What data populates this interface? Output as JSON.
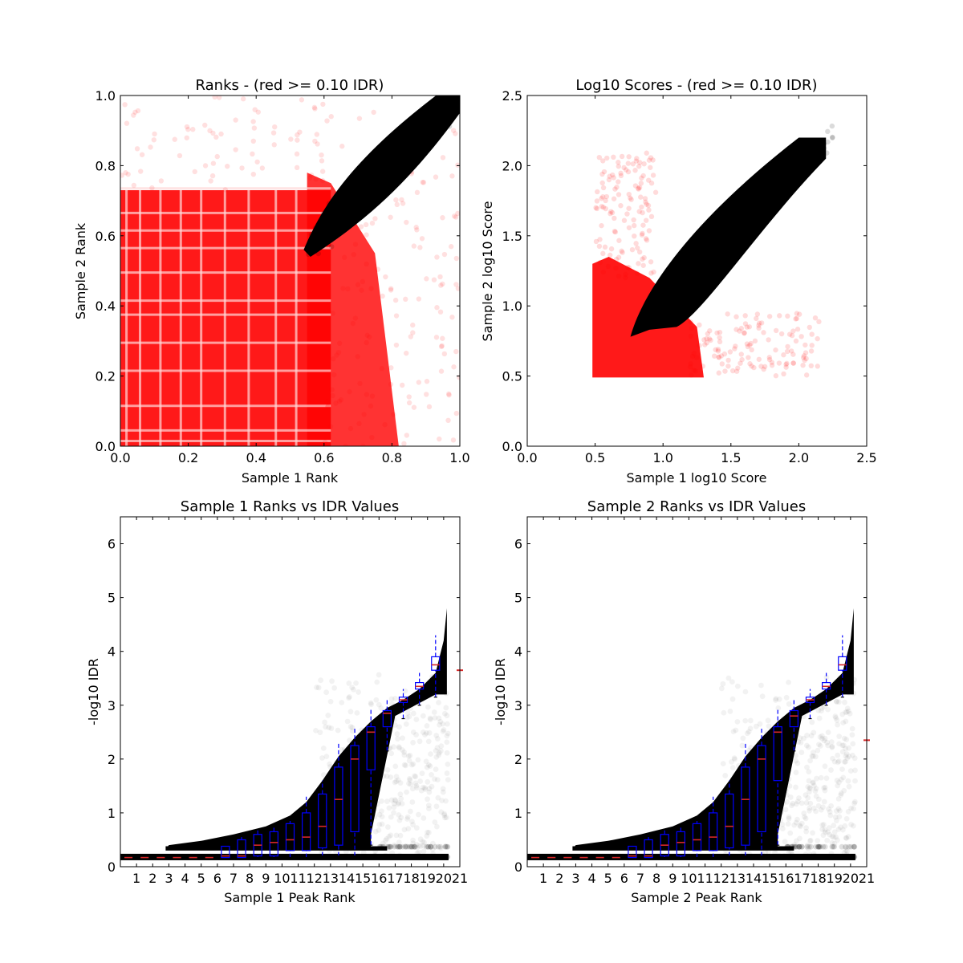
{
  "chart_data": [
    {
      "type": "scatter",
      "title": "Ranks - (red >= 0.10 IDR)",
      "xlabel": "Sample 1 Rank",
      "ylabel": "Sample 2 Rank",
      "xlim": [
        0.0,
        1.0
      ],
      "ylim": [
        0.0,
        1.0
      ],
      "xticks": [
        "0.0",
        "0.2",
        "0.4",
        "0.6",
        "0.8",
        "1.0"
      ],
      "yticks": [
        "0.0",
        "0.2",
        "0.4",
        "0.6",
        "0.8",
        "1.0"
      ],
      "grid": false,
      "colors": {
        "pass": "#000000",
        "fail": "#ff0000"
      },
      "series": [
        {
          "color": "#ff0000",
          "region": "x 0.0–0.85, y 0.0–0.75 (dense, grid-striped)"
        },
        {
          "color": "#000000",
          "region": "band from (0.55, 0.54) to (1.0, 1.0)"
        }
      ]
    },
    {
      "type": "scatter",
      "title": "Log10 Scores - (red >= 0.10 IDR)",
      "xlabel": "Sample 1 log10 Score",
      "ylabel": "Sample 2 log10 Score",
      "xlim": [
        0.0,
        2.5
      ],
      "ylim": [
        0.0,
        2.5
      ],
      "xticks": [
        "0.0",
        "0.5",
        "1.0",
        "1.5",
        "2.0",
        "2.5"
      ],
      "yticks": [
        "0.0",
        "0.5",
        "1.0",
        "1.5",
        "2.0",
        "2.5"
      ],
      "grid": false,
      "colors": {
        "pass": "#000000",
        "fail": "#ff0000"
      },
      "series": [
        {
          "color": "#ff0000",
          "region": "x 0.5–1.3, y 0.5–1.3"
        },
        {
          "color": "#000000",
          "region": "band from (0.77, 0.78) to (2.2, 2.2)"
        }
      ]
    },
    {
      "type": "box",
      "title": "Sample 1 Ranks vs IDR Values",
      "xlabel": "Sample 1 Peak Rank",
      "ylabel": "-log10 IDR",
      "xlim": [
        0,
        21
      ],
      "ylim": [
        0,
        6.5
      ],
      "xticks": [
        "1",
        "2",
        "3",
        "4",
        "5",
        "6",
        "7",
        "8",
        "9",
        "10",
        "11",
        "12",
        "13",
        "14",
        "15",
        "16",
        "17",
        "18",
        "19",
        "20",
        "21"
      ],
      "yticks": [
        "0",
        "1",
        "2",
        "3",
        "4",
        "5",
        "6"
      ],
      "boxes": [
        {
          "x": 1,
          "q1": 0.17,
          "median": 0.17,
          "q3": 0.17,
          "whisker_low": 0.17,
          "whisker_high": 0.17
        },
        {
          "x": 2,
          "q1": 0.17,
          "median": 0.17,
          "q3": 0.17,
          "whisker_low": 0.17,
          "whisker_high": 0.17
        },
        {
          "x": 3,
          "q1": 0.17,
          "median": 0.17,
          "q3": 0.17,
          "whisker_low": 0.17,
          "whisker_high": 0.17
        },
        {
          "x": 4,
          "q1": 0.17,
          "median": 0.17,
          "q3": 0.17,
          "whisker_low": 0.17,
          "whisker_high": 0.17
        },
        {
          "x": 5,
          "q1": 0.17,
          "median": 0.17,
          "q3": 0.17,
          "whisker_low": 0.17,
          "whisker_high": 0.17
        },
        {
          "x": 6,
          "q1": 0.17,
          "median": 0.17,
          "q3": 0.17,
          "whisker_low": 0.17,
          "whisker_high": 0.17
        },
        {
          "x": 7,
          "q1": 0.17,
          "median": 0.2,
          "q3": 0.38,
          "whisker_low": 0.17,
          "whisker_high": 0.38
        },
        {
          "x": 8,
          "q1": 0.17,
          "median": 0.2,
          "q3": 0.5,
          "whisker_low": 0.17,
          "whisker_high": 0.55
        },
        {
          "x": 9,
          "q1": 0.2,
          "median": 0.4,
          "q3": 0.6,
          "whisker_low": 0.17,
          "whisker_high": 0.68
        },
        {
          "x": 10,
          "q1": 0.2,
          "median": 0.45,
          "q3": 0.65,
          "whisker_low": 0.17,
          "whisker_high": 0.75
        },
        {
          "x": 11,
          "q1": 0.3,
          "median": 0.5,
          "q3": 0.8,
          "whisker_low": 0.17,
          "whisker_high": 0.85
        },
        {
          "x": 12,
          "q1": 0.3,
          "median": 0.55,
          "q3": 1.0,
          "whisker_low": 0.17,
          "whisker_high": 1.3
        },
        {
          "x": 13,
          "q1": 0.35,
          "median": 0.75,
          "q3": 1.35,
          "whisker_low": 0.2,
          "whisker_high": 1.6
        },
        {
          "x": 14,
          "q1": 0.4,
          "median": 1.25,
          "q3": 1.85,
          "whisker_low": 0.2,
          "whisker_high": 2.3
        },
        {
          "x": 15,
          "q1": 0.65,
          "median": 2.0,
          "q3": 2.25,
          "whisker_low": 0.2,
          "whisker_high": 2.6
        },
        {
          "x": 16,
          "q1": 1.8,
          "median": 2.5,
          "q3": 2.6,
          "whisker_low": 0.4,
          "whisker_high": 2.95
        },
        {
          "x": 17,
          "q1": 2.6,
          "median": 2.85,
          "q3": 2.9,
          "whisker_low": 2.15,
          "whisker_high": 3.1
        },
        {
          "x": 18,
          "q1": 3.05,
          "median": 3.1,
          "q3": 3.15,
          "whisker_low": 2.75,
          "whisker_high": 3.3
        },
        {
          "x": 19,
          "q1": 3.3,
          "median": 3.35,
          "q3": 3.42,
          "whisker_low": 3.0,
          "whisker_high": 3.6
        },
        {
          "x": 20,
          "q1": 3.65,
          "median": 3.75,
          "q3": 3.9,
          "whisker_low": 3.15,
          "whisker_high": 4.3
        },
        {
          "x": 21,
          "q1": 3.65,
          "median": 3.65,
          "q3": 3.65,
          "whisker_low": 3.65,
          "whisker_high": 3.65
        }
      ]
    },
    {
      "type": "box",
      "title": "Sample 2 Ranks vs IDR Values",
      "xlabel": "Sample 2 Peak Rank",
      "ylabel": "-log10 IDR",
      "xlim": [
        0,
        21
      ],
      "ylim": [
        0,
        6.5
      ],
      "xticks": [
        "1",
        "2",
        "3",
        "4",
        "5",
        "6",
        "7",
        "8",
        "9",
        "10",
        "11",
        "12",
        "13",
        "14",
        "15",
        "16",
        "17",
        "18",
        "19",
        "20",
        "21"
      ],
      "yticks": [
        "0",
        "1",
        "2",
        "3",
        "4",
        "5",
        "6"
      ],
      "boxes": [
        {
          "x": 1,
          "q1": 0.17,
          "median": 0.17,
          "q3": 0.17,
          "whisker_low": 0.17,
          "whisker_high": 0.17
        },
        {
          "x": 2,
          "q1": 0.17,
          "median": 0.17,
          "q3": 0.17,
          "whisker_low": 0.17,
          "whisker_high": 0.17
        },
        {
          "x": 3,
          "q1": 0.17,
          "median": 0.17,
          "q3": 0.17,
          "whisker_low": 0.17,
          "whisker_high": 0.17
        },
        {
          "x": 4,
          "q1": 0.17,
          "median": 0.17,
          "q3": 0.17,
          "whisker_low": 0.17,
          "whisker_high": 0.17
        },
        {
          "x": 5,
          "q1": 0.17,
          "median": 0.17,
          "q3": 0.17,
          "whisker_low": 0.17,
          "whisker_high": 0.17
        },
        {
          "x": 6,
          "q1": 0.17,
          "median": 0.17,
          "q3": 0.17,
          "whisker_low": 0.17,
          "whisker_high": 0.17
        },
        {
          "x": 7,
          "q1": 0.17,
          "median": 0.2,
          "q3": 0.38,
          "whisker_low": 0.17,
          "whisker_high": 0.38
        },
        {
          "x": 8,
          "q1": 0.17,
          "median": 0.2,
          "q3": 0.5,
          "whisker_low": 0.17,
          "whisker_high": 0.55
        },
        {
          "x": 9,
          "q1": 0.2,
          "median": 0.4,
          "q3": 0.6,
          "whisker_low": 0.17,
          "whisker_high": 0.68
        },
        {
          "x": 10,
          "q1": 0.2,
          "median": 0.45,
          "q3": 0.65,
          "whisker_low": 0.17,
          "whisker_high": 0.75
        },
        {
          "x": 11,
          "q1": 0.3,
          "median": 0.5,
          "q3": 0.8,
          "whisker_low": 0.17,
          "whisker_high": 0.85
        },
        {
          "x": 12,
          "q1": 0.3,
          "median": 0.55,
          "q3": 1.0,
          "whisker_low": 0.17,
          "whisker_high": 1.3
        },
        {
          "x": 13,
          "q1": 0.35,
          "median": 0.75,
          "q3": 1.35,
          "whisker_low": 0.2,
          "whisker_high": 1.6
        },
        {
          "x": 14,
          "q1": 0.4,
          "median": 1.25,
          "q3": 1.85,
          "whisker_low": 0.2,
          "whisker_high": 2.3
        },
        {
          "x": 15,
          "q1": 0.65,
          "median": 2.0,
          "q3": 2.25,
          "whisker_low": 0.2,
          "whisker_high": 2.6
        },
        {
          "x": 16,
          "q1": 1.6,
          "median": 2.5,
          "q3": 2.6,
          "whisker_low": 0.4,
          "whisker_high": 2.95
        },
        {
          "x": 17,
          "q1": 2.6,
          "median": 2.8,
          "q3": 2.9,
          "whisker_low": 2.15,
          "whisker_high": 3.1
        },
        {
          "x": 18,
          "q1": 3.05,
          "median": 3.1,
          "q3": 3.15,
          "whisker_low": 2.75,
          "whisker_high": 3.3
        },
        {
          "x": 19,
          "q1": 3.3,
          "median": 3.35,
          "q3": 3.42,
          "whisker_low": 3.0,
          "whisker_high": 3.6
        },
        {
          "x": 20,
          "q1": 3.65,
          "median": 3.75,
          "q3": 3.9,
          "whisker_low": 3.15,
          "whisker_high": 4.3
        },
        {
          "x": 21,
          "q1": 2.35,
          "median": 2.35,
          "q3": 2.35,
          "whisker_low": 2.35,
          "whisker_high": 2.35
        }
      ]
    }
  ]
}
